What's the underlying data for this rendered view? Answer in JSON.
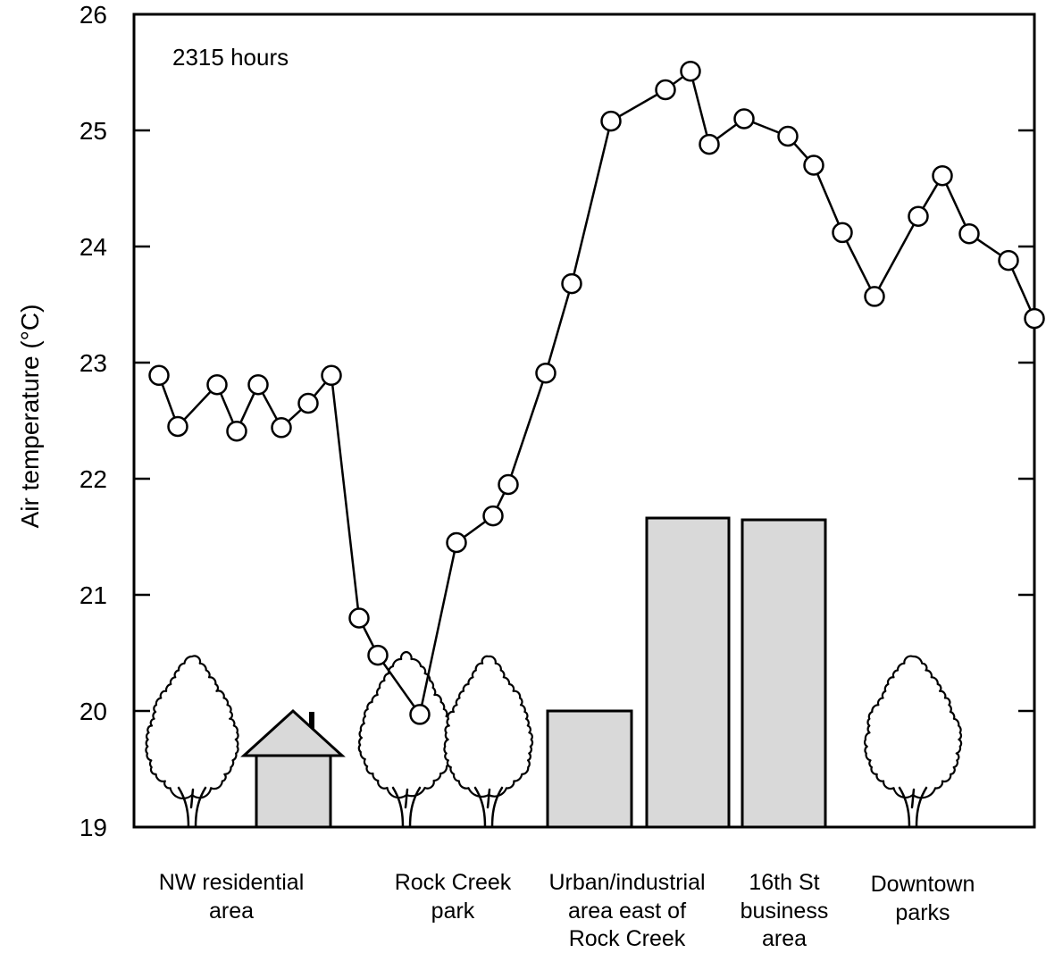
{
  "chart_data": {
    "type": "line",
    "title": "",
    "annotation": "2315 hours",
    "xlabel": "",
    "ylabel": "Air temperature (°C)",
    "ylim": [
      19,
      26
    ],
    "yticks": [
      19,
      20,
      21,
      22,
      23,
      24,
      25,
      26
    ],
    "grid": false,
    "legend": false,
    "values": [
      22.89,
      22.45,
      22.81,
      22.41,
      22.81,
      22.44,
      22.65,
      22.89,
      20.8,
      20.48,
      19.97,
      21.45,
      21.68,
      21.95,
      22.91,
      23.68,
      25.08,
      25.35,
      25.51,
      24.88,
      25.1,
      24.95,
      24.7,
      24.12,
      23.57,
      24.26,
      24.61,
      24.11,
      23.88,
      23.38
    ],
    "regions": [
      {
        "lines": [
          "NW residential",
          "area"
        ]
      },
      {
        "lines": [
          "Rock Creek",
          "park"
        ]
      },
      {
        "lines": [
          "Urban/industrial",
          "area east of",
          "Rock Creek"
        ]
      },
      {
        "lines": [
          "16th St",
          "business",
          "area"
        ]
      },
      {
        "lines": [
          "Downtown",
          "parks"
        ]
      }
    ]
  },
  "icons": [
    "tree-icon",
    "house-icon",
    "building-icon"
  ],
  "colors": {
    "frame": "#000000",
    "series": "#000000",
    "marker_fill": "#ffffff",
    "building_fill": "#d9d9d9"
  }
}
